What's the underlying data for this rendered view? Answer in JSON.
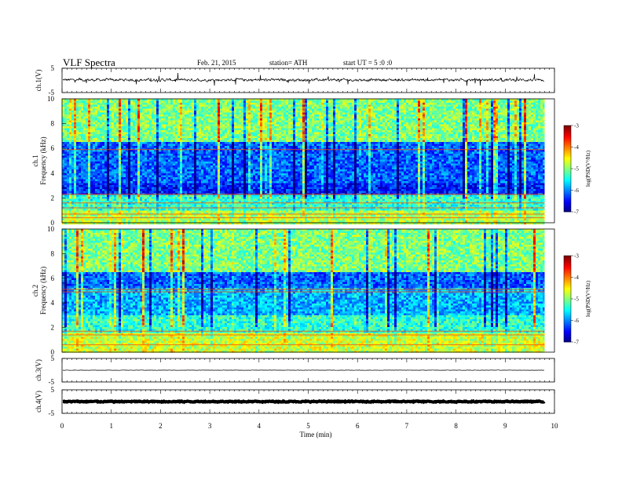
{
  "header": {
    "title": "VLF  Spectra",
    "date": "Feb. 21, 2015",
    "station": "station= ATH",
    "start": "start  UT  =   5  :0  :0"
  },
  "chart_data": [
    {
      "id": "ch1-waveform",
      "type": "line",
      "ylabel": "ch.1(V)",
      "ylim": [
        -5,
        5
      ],
      "yticks": [
        "5",
        "-5"
      ],
      "xlim": [
        0,
        10
      ],
      "data_extent_min": 9.8,
      "level": 0.2,
      "noise_amplitude": 0.8,
      "color": "#000000"
    },
    {
      "id": "ch1-spectrogram",
      "type": "heatmap",
      "ylabel_top": "ch.1",
      "ylabel": "Frequency  (kHz)",
      "ylim": [
        0,
        10
      ],
      "yticks": [
        "0",
        "2",
        "4",
        "6",
        "8",
        "10"
      ],
      "xlim": [
        0,
        10
      ],
      "data_extent_min": 9.8,
      "colorbar": {
        "label": "log(PSD(V²/Hz)",
        "range": [
          -7,
          -3
        ],
        "ticks": [
          "-3",
          "-4",
          "-5",
          "-6",
          "-7"
        ]
      }
    },
    {
      "id": "ch2-spectrogram",
      "type": "heatmap",
      "ylabel_top": "ch.2",
      "ylabel": "Frequency  (kHz)",
      "ylim": [
        0,
        10
      ],
      "yticks": [
        "0",
        "2",
        "4",
        "6",
        "8",
        "10"
      ],
      "xlim": [
        0,
        10
      ],
      "data_extent_min": 9.8,
      "colorbar": {
        "label": "log(PSD(V²/Hz)",
        "range": [
          -7,
          -3
        ],
        "ticks": [
          "-3",
          "-4",
          "-5",
          "-6",
          "-7"
        ]
      }
    },
    {
      "id": "ch3-waveform",
      "type": "line",
      "ylabel": "ch.3(V)",
      "ylim": [
        -5,
        5
      ],
      "yticks": [
        "5",
        "-5"
      ],
      "xlim": [
        0,
        10
      ],
      "data_extent_min": 9.8,
      "level": 0.0,
      "noise_amplitude": 0.1,
      "color": "#000000"
    },
    {
      "id": "ch4-waveform",
      "type": "line",
      "ylabel": "ch.4(V)",
      "ylim": [
        -5,
        5
      ],
      "yticks": [
        "5",
        "-5"
      ],
      "xlim": [
        0,
        10
      ],
      "data_extent_min": 9.8,
      "level": 0.0,
      "noise_amplitude": 0.3,
      "color": "#000000"
    }
  ],
  "x_axis": {
    "label": "Time  (min)",
    "ticks": [
      "0",
      "1",
      "2",
      "3",
      "4",
      "5",
      "6",
      "7",
      "8",
      "9",
      "10"
    ]
  }
}
